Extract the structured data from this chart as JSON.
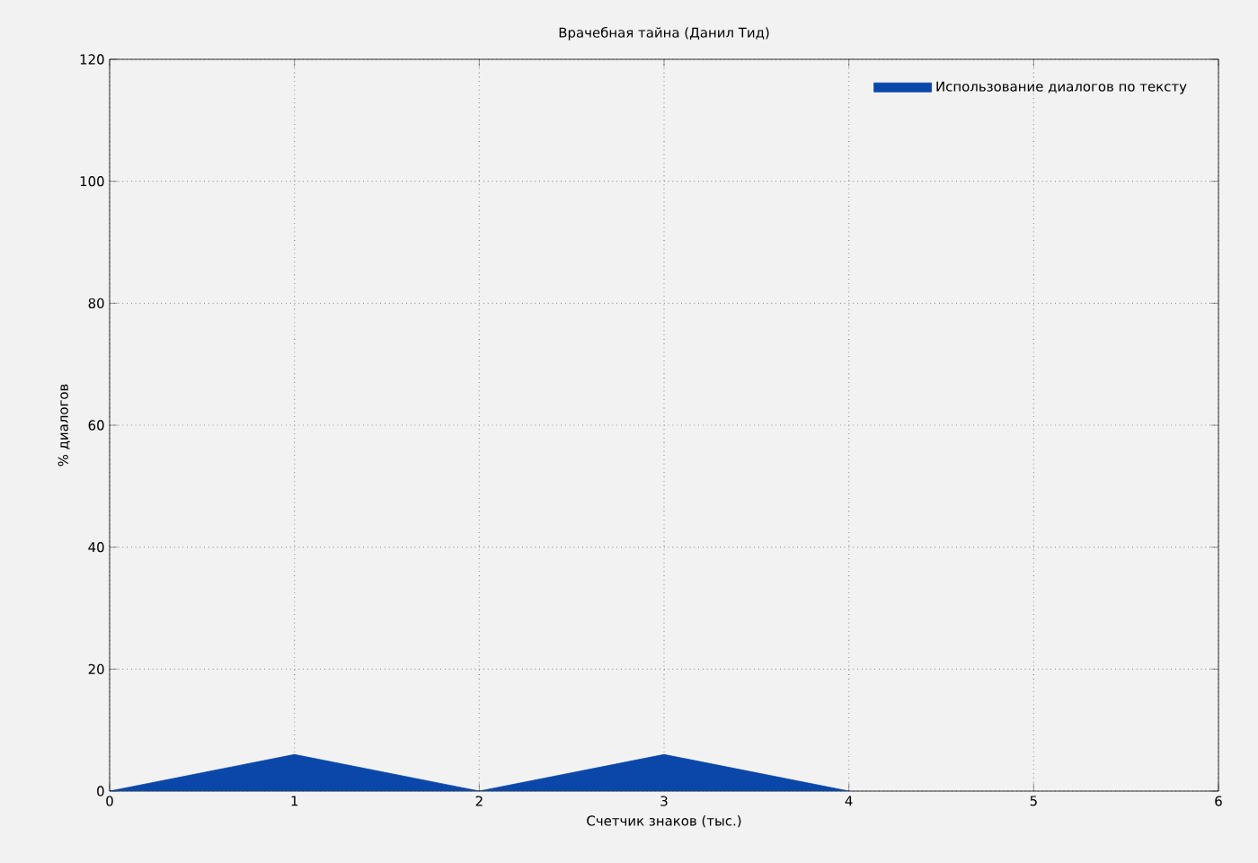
{
  "chart_data": {
    "type": "area",
    "title": "Врачебная тайна (Данил Тид)",
    "xlabel": "Счетчик знаков (тыс.)",
    "ylabel": "% диалогов",
    "x": [
      0,
      1,
      2,
      3,
      4
    ],
    "series": [
      {
        "name": "Использование диалогов по тексту",
        "color": "#0a47a8",
        "values": [
          0,
          6,
          0,
          6,
          0
        ]
      }
    ],
    "xlim": [
      0,
      6
    ],
    "ylim": [
      0,
      120
    ],
    "xticks": [
      0,
      1,
      2,
      3,
      4,
      5,
      6
    ],
    "yticks": [
      0,
      20,
      40,
      60,
      80,
      100,
      120
    ],
    "grid": true,
    "legend": "top right"
  }
}
